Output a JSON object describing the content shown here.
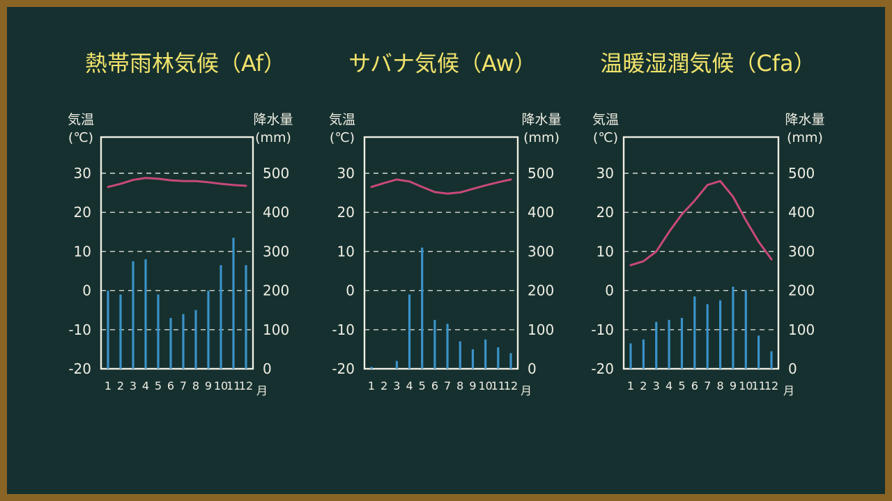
{
  "colors": {
    "board": "#15302f",
    "frame": "#8a6424",
    "chalk": "#f1efe4",
    "title": "#f2e36b",
    "temperature_line": "#c8497a",
    "precipitation_bar": "#3b93c9"
  },
  "chart_data": [
    {
      "type": "bar+line",
      "title": "熱帯雨林気候（Af）",
      "left_axis_label": "気温",
      "left_axis_unit": "(℃)",
      "right_axis_label": "降水量",
      "right_axis_unit": "(mm)",
      "month_unit": "月",
      "categories": [
        "1",
        "2",
        "3",
        "4",
        "5",
        "6",
        "7",
        "8",
        "9",
        "10",
        "11",
        "12"
      ],
      "temperature_ticks": [
        "30",
        "20",
        "10",
        "0",
        "-10",
        "-20"
      ],
      "precipitation_ticks": [
        "500",
        "400",
        "300",
        "200",
        "100",
        "0"
      ],
      "temperature_range": [
        -20,
        30
      ],
      "precipitation_range": [
        0,
        500
      ],
      "grid": "dashed",
      "temperature": [
        26.5,
        27.3,
        28.3,
        28.8,
        28.6,
        28.2,
        28.0,
        28.0,
        27.7,
        27.3,
        27.0,
        26.8
      ],
      "precipitation": [
        200,
        190,
        275,
        280,
        190,
        130,
        140,
        150,
        200,
        265,
        335,
        265
      ]
    },
    {
      "type": "bar+line",
      "title": "サバナ気候（Aw）",
      "left_axis_label": "気温",
      "left_axis_unit": "(℃)",
      "right_axis_label": "降水量",
      "right_axis_unit": "(mm)",
      "month_unit": "月",
      "categories": [
        "1",
        "2",
        "3",
        "4",
        "5",
        "6",
        "7",
        "8",
        "9",
        "10",
        "11",
        "12"
      ],
      "temperature_ticks": [
        "30",
        "20",
        "10",
        "0",
        "-10",
        "-20"
      ],
      "precipitation_ticks": [
        "500",
        "400",
        "300",
        "200",
        "100",
        "0"
      ],
      "temperature_range": [
        -20,
        30
      ],
      "precipitation_range": [
        0,
        500
      ],
      "grid": "dashed",
      "temperature": [
        26.5,
        27.5,
        28.4,
        27.9,
        26.5,
        25.2,
        24.8,
        25.1,
        26.0,
        26.9,
        27.7,
        28.4
      ],
      "precipitation": [
        5,
        0,
        20,
        190,
        310,
        125,
        115,
        70,
        50,
        75,
        55,
        40
      ]
    },
    {
      "type": "bar+line",
      "title": "温暖湿潤気候（Cfa）",
      "left_axis_label": "気温",
      "left_axis_unit": "(℃)",
      "right_axis_label": "降水量",
      "right_axis_unit": "(mm)",
      "month_unit": "月",
      "categories": [
        "1",
        "2",
        "3",
        "4",
        "5",
        "6",
        "7",
        "8",
        "9",
        "10",
        "11",
        "12"
      ],
      "temperature_ticks": [
        "30",
        "20",
        "10",
        "0",
        "-10",
        "-20"
      ],
      "precipitation_ticks": [
        "500",
        "400",
        "300",
        "200",
        "100",
        "0"
      ],
      "temperature_range": [
        -20,
        30
      ],
      "precipitation_range": [
        0,
        500
      ],
      "grid": "dashed",
      "temperature": [
        6.5,
        7.5,
        10.0,
        15.0,
        19.5,
        23.0,
        27.0,
        28.0,
        24.0,
        18.0,
        12.5,
        8.0
      ],
      "precipitation": [
        65,
        75,
        120,
        125,
        130,
        185,
        165,
        175,
        210,
        200,
        85,
        45
      ]
    }
  ]
}
